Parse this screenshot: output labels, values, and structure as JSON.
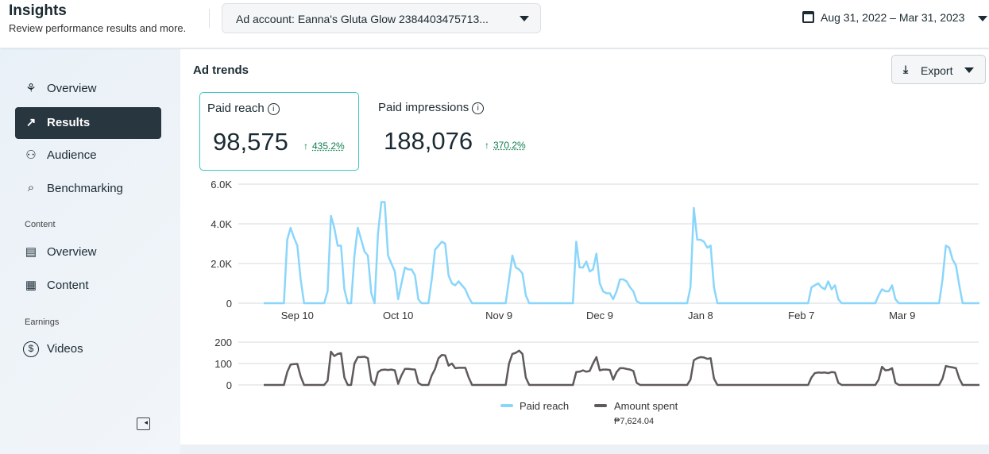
{
  "header": {
    "title": "Insights",
    "subtitle": "Review performance results and more.",
    "ad_account": "Ad account: Eanna's Gluta Glow 2384403475713...",
    "date_range": "Aug 31, 2022 – Mar 31, 2023"
  },
  "sidebar": {
    "items": [
      {
        "label": "Overview",
        "icon": "network-icon"
      },
      {
        "label": "Results",
        "icon": "trend-icon"
      },
      {
        "label": "Audience",
        "icon": "people-icon"
      },
      {
        "label": "Benchmarking",
        "icon": "search-list-icon"
      }
    ],
    "content_section": "Content",
    "content_items": [
      {
        "label": "Overview",
        "icon": "news-icon"
      },
      {
        "label": "Content",
        "icon": "table-icon"
      }
    ],
    "earnings_section": "Earnings",
    "earnings_items": [
      {
        "label": "Videos",
        "icon": "dollar-icon"
      }
    ]
  },
  "main": {
    "title": "Ad trends",
    "export_label": "Export",
    "metrics": [
      {
        "label": "Paid reach",
        "value": "98,575",
        "change": "435.2%"
      },
      {
        "label": "Paid impressions",
        "value": "188,076",
        "change": "370.2%"
      }
    ]
  },
  "colors": {
    "reach": "#8ad6fb",
    "spent": "#605a5a",
    "accent": "#0f7e4e",
    "active_nav": "#283640"
  },
  "chart_data": [
    {
      "type": "line",
      "name": "Paid reach",
      "x_unit": "days since Aug 31, 2022",
      "xlim": [
        0,
        213
      ],
      "ylim": [
        0,
        6000
      ],
      "yticks": [
        {
          "v": 0,
          "l": "0"
        },
        {
          "v": 2000,
          "l": "2.0K"
        },
        {
          "v": 4000,
          "l": "4.0K"
        },
        {
          "v": 6000,
          "l": "6.0K"
        }
      ],
      "xticks": [
        {
          "v": 10,
          "l": "Sep 10"
        },
        {
          "v": 40,
          "l": "Oct 10"
        },
        {
          "v": 70,
          "l": "Nov 9"
        },
        {
          "v": 100,
          "l": "Dec 9"
        },
        {
          "v": 130,
          "l": "Jan 8"
        },
        {
          "v": 160,
          "l": "Feb 7"
        },
        {
          "v": 190,
          "l": "Mar 9"
        }
      ],
      "points": [
        [
          0,
          0
        ],
        [
          6,
          0
        ],
        [
          7,
          3200
        ],
        [
          8,
          3800
        ],
        [
          9,
          3300
        ],
        [
          10,
          2900
        ],
        [
          11,
          1200
        ],
        [
          12,
          0
        ],
        [
          18,
          0
        ],
        [
          19,
          600
        ],
        [
          20,
          4400
        ],
        [
          21,
          3800
        ],
        [
          22,
          2900
        ],
        [
          23,
          2900
        ],
        [
          24,
          700
        ],
        [
          25,
          0
        ],
        [
          26,
          0
        ],
        [
          27,
          2400
        ],
        [
          28,
          3800
        ],
        [
          29,
          3200
        ],
        [
          30,
          2600
        ],
        [
          31,
          2400
        ],
        [
          32,
          500
        ],
        [
          33,
          0
        ],
        [
          34,
          3500
        ],
        [
          35,
          5100
        ],
        [
          36,
          5100
        ],
        [
          37,
          2400
        ],
        [
          38,
          2000
        ],
        [
          39,
          1600
        ],
        [
          40,
          200
        ],
        [
          41,
          1000
        ],
        [
          42,
          1800
        ],
        [
          43,
          1700
        ],
        [
          44,
          1700
        ],
        [
          45,
          1400
        ],
        [
          46,
          200
        ],
        [
          47,
          0
        ],
        [
          49,
          0
        ],
        [
          50,
          1200
        ],
        [
          51,
          2700
        ],
        [
          52,
          2900
        ],
        [
          53,
          3100
        ],
        [
          54,
          3000
        ],
        [
          55,
          1400
        ],
        [
          56,
          1000
        ],
        [
          57,
          900
        ],
        [
          58,
          1100
        ],
        [
          59,
          900
        ],
        [
          60,
          700
        ],
        [
          61,
          300
        ],
        [
          62,
          0
        ],
        [
          72,
          0
        ],
        [
          73,
          1200
        ],
        [
          74,
          2400
        ],
        [
          75,
          1800
        ],
        [
          76,
          1700
        ],
        [
          77,
          1500
        ],
        [
          78,
          400
        ],
        [
          79,
          0
        ],
        [
          92,
          0
        ],
        [
          93,
          3100
        ],
        [
          94,
          1800
        ],
        [
          95,
          1800
        ],
        [
          96,
          2100
        ],
        [
          97,
          1600
        ],
        [
          98,
          1700
        ],
        [
          99,
          2500
        ],
        [
          100,
          1000
        ],
        [
          101,
          600
        ],
        [
          102,
          500
        ],
        [
          103,
          500
        ],
        [
          104,
          200
        ],
        [
          105,
          600
        ],
        [
          106,
          1200
        ],
        [
          107,
          1200
        ],
        [
          108,
          1100
        ],
        [
          109,
          800
        ],
        [
          110,
          600
        ],
        [
          111,
          100
        ],
        [
          112,
          0
        ],
        [
          126,
          0
        ],
        [
          127,
          800
        ],
        [
          128,
          4800
        ],
        [
          129,
          3200
        ],
        [
          130,
          3200
        ],
        [
          131,
          3100
        ],
        [
          132,
          2800
        ],
        [
          133,
          2900
        ],
        [
          134,
          800
        ],
        [
          135,
          0
        ],
        [
          162,
          0
        ],
        [
          163,
          800
        ],
        [
          164,
          900
        ],
        [
          165,
          1000
        ],
        [
          166,
          800
        ],
        [
          167,
          700
        ],
        [
          168,
          1100
        ],
        [
          169,
          700
        ],
        [
          170,
          900
        ],
        [
          171,
          200
        ],
        [
          172,
          0
        ],
        [
          182,
          0
        ],
        [
          183,
          400
        ],
        [
          184,
          700
        ],
        [
          185,
          600
        ],
        [
          186,
          600
        ],
        [
          187,
          900
        ],
        [
          188,
          200
        ],
        [
          189,
          0
        ],
        [
          201,
          0
        ],
        [
          202,
          1200
        ],
        [
          203,
          2900
        ],
        [
          204,
          2800
        ],
        [
          205,
          2200
        ],
        [
          206,
          1900
        ],
        [
          207,
          900
        ],
        [
          208,
          0
        ],
        [
          213,
          0
        ]
      ]
    },
    {
      "type": "line",
      "name": "Amount spent",
      "total": "₱7,624.04",
      "x_unit": "days since Aug 31, 2022",
      "xlim": [
        0,
        213
      ],
      "ylim": [
        0,
        200
      ],
      "yticks": [
        {
          "v": 0,
          "l": "0"
        },
        {
          "v": 100,
          "l": "100"
        },
        {
          "v": 200,
          "l": "200"
        }
      ],
      "points": [
        [
          0,
          0
        ],
        [
          6,
          0
        ],
        [
          7,
          60
        ],
        [
          8,
          95
        ],
        [
          9,
          97
        ],
        [
          10,
          98
        ],
        [
          11,
          40
        ],
        [
          12,
          0
        ],
        [
          18,
          0
        ],
        [
          19,
          20
        ],
        [
          20,
          155
        ],
        [
          21,
          135
        ],
        [
          22,
          145
        ],
        [
          23,
          148
        ],
        [
          24,
          35
        ],
        [
          25,
          0
        ],
        [
          26,
          0
        ],
        [
          27,
          100
        ],
        [
          28,
          130
        ],
        [
          29,
          130
        ],
        [
          30,
          132
        ],
        [
          31,
          125
        ],
        [
          32,
          20
        ],
        [
          33,
          0
        ],
        [
          34,
          60
        ],
        [
          35,
          70
        ],
        [
          36,
          72
        ],
        [
          37,
          70
        ],
        [
          38,
          72
        ],
        [
          39,
          68
        ],
        [
          40,
          5
        ],
        [
          41,
          45
        ],
        [
          42,
          75
        ],
        [
          43,
          75
        ],
        [
          44,
          73
        ],
        [
          45,
          72
        ],
        [
          46,
          10
        ],
        [
          47,
          0
        ],
        [
          49,
          0
        ],
        [
          50,
          45
        ],
        [
          51,
          75
        ],
        [
          52,
          125
        ],
        [
          53,
          140
        ],
        [
          54,
          138
        ],
        [
          55,
          90
        ],
        [
          56,
          100
        ],
        [
          57,
          78
        ],
        [
          58,
          80
        ],
        [
          59,
          80
        ],
        [
          60,
          80
        ],
        [
          61,
          35
        ],
        [
          62,
          0
        ],
        [
          72,
          0
        ],
        [
          73,
          100
        ],
        [
          74,
          145
        ],
        [
          75,
          150
        ],
        [
          76,
          160
        ],
        [
          77,
          145
        ],
        [
          78,
          35
        ],
        [
          79,
          0
        ],
        [
          92,
          0
        ],
        [
          93,
          60
        ],
        [
          94,
          62
        ],
        [
          95,
          68
        ],
        [
          96,
          62
        ],
        [
          97,
          65
        ],
        [
          98,
          100
        ],
        [
          99,
          130
        ],
        [
          100,
          68
        ],
        [
          101,
          72
        ],
        [
          102,
          72
        ],
        [
          103,
          70
        ],
        [
          104,
          25
        ],
        [
          105,
          60
        ],
        [
          106,
          78
        ],
        [
          107,
          78
        ],
        [
          108,
          75
        ],
        [
          109,
          72
        ],
        [
          110,
          65
        ],
        [
          111,
          10
        ],
        [
          112,
          0
        ],
        [
          126,
          0
        ],
        [
          127,
          25
        ],
        [
          128,
          115
        ],
        [
          129,
          125
        ],
        [
          130,
          130
        ],
        [
          131,
          128
        ],
        [
          132,
          122
        ],
        [
          133,
          125
        ],
        [
          134,
          30
        ],
        [
          135,
          0
        ],
        [
          162,
          0
        ],
        [
          163,
          35
        ],
        [
          164,
          55
        ],
        [
          165,
          58
        ],
        [
          166,
          57
        ],
        [
          167,
          58
        ],
        [
          168,
          55
        ],
        [
          169,
          60
        ],
        [
          170,
          58
        ],
        [
          171,
          10
        ],
        [
          172,
          0
        ],
        [
          182,
          0
        ],
        [
          183,
          25
        ],
        [
          184,
          85
        ],
        [
          185,
          68
        ],
        [
          186,
          70
        ],
        [
          187,
          78
        ],
        [
          188,
          10
        ],
        [
          189,
          0
        ],
        [
          201,
          0
        ],
        [
          202,
          30
        ],
        [
          203,
          88
        ],
        [
          204,
          85
        ],
        [
          205,
          82
        ],
        [
          206,
          78
        ],
        [
          207,
          30
        ],
        [
          208,
          0
        ],
        [
          213,
          0
        ]
      ]
    }
  ]
}
